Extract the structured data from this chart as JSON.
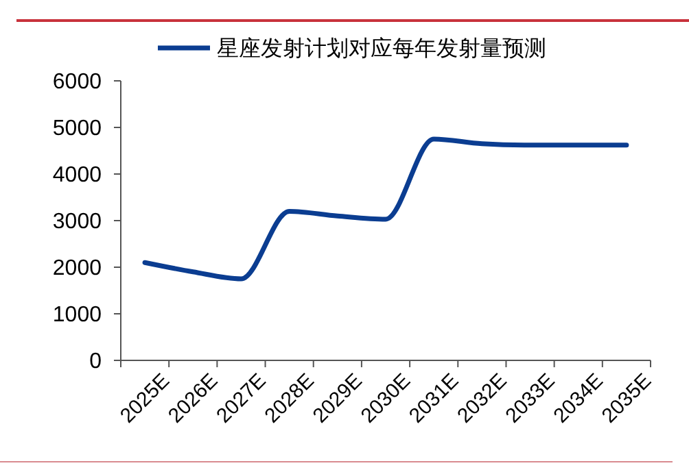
{
  "chart_data": {
    "type": "line",
    "categories": [
      "2025E",
      "2026E",
      "2027E",
      "2028E",
      "2029E",
      "2030E",
      "2031E",
      "2032E",
      "2033E",
      "2034E",
      "2035E"
    ],
    "series": [
      {
        "name": "星座发射计划对应每年发射量预测",
        "color": "#0b3d91",
        "values": [
          2100,
          1900,
          1750,
          3200,
          3100,
          3030,
          4750,
          4650,
          4620,
          4620,
          4620
        ]
      }
    ],
    "ylim": [
      0,
      6000
    ],
    "yticks": [
      0,
      1000,
      2000,
      3000,
      4000,
      5000,
      6000
    ],
    "legend": "top",
    "grid": false,
    "marker": "none",
    "line_style": "solid"
  }
}
